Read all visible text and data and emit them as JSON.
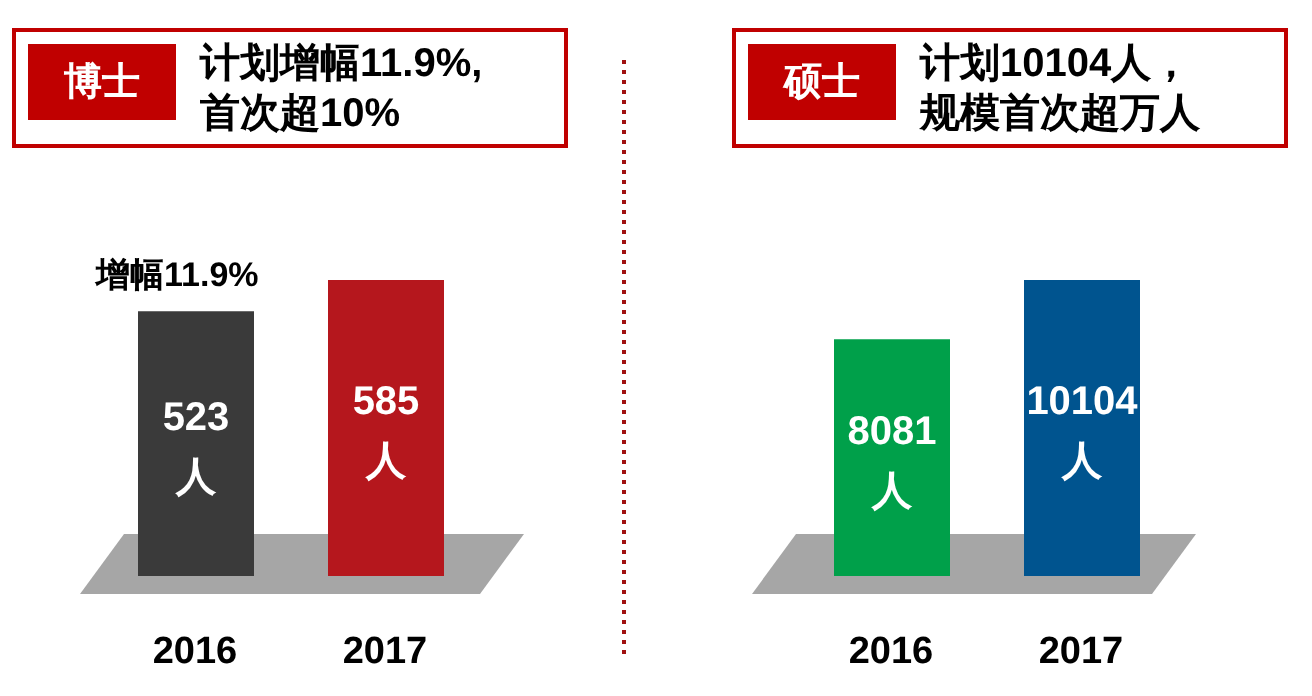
{
  "chart_data": [
    {
      "type": "bar",
      "title": "博士",
      "subtitle": "计划增幅11.9%,首次超10%",
      "annotations": [
        "增幅11.9%"
      ],
      "categories": [
        "2016",
        "2017"
      ],
      "values": [
        523,
        585
      ],
      "colors": [
        "#3a3a3a",
        "#b5171d"
      ],
      "value_labels": [
        "523\n人",
        "585\n人"
      ]
    },
    {
      "type": "bar",
      "title": "硕士",
      "subtitle": "计划10104人，规模首次超万人",
      "categories": [
        "2016",
        "2017"
      ],
      "values": [
        8081,
        10104
      ],
      "colors": [
        "#00a04a",
        "#00548f"
      ],
      "value_labels": [
        "8081\n人",
        "10104\n人"
      ]
    }
  ]
}
